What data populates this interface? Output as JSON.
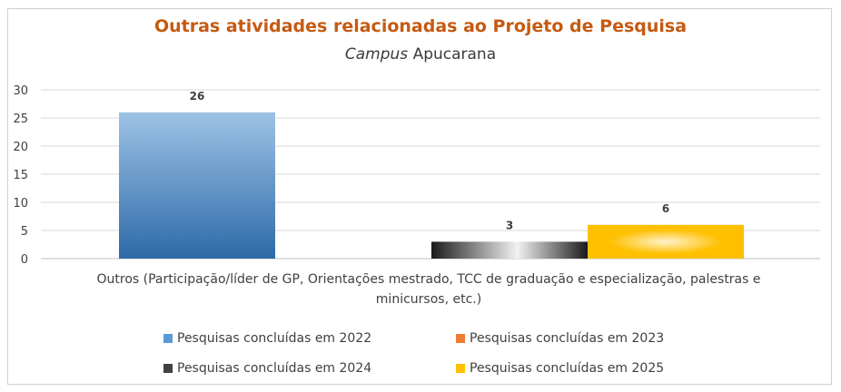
{
  "chart_data": {
    "type": "bar",
    "title": "Outras atividades relacionadas ao Projeto de Pesquisa",
    "subtitle_italic": "Campus",
    "subtitle_rest": "Apucarana",
    "categories": [
      "Outros (Participação/líder de GP, Orientações mestrado, TCC de graduação e especialização, palestras e minicursos, etc.)"
    ],
    "category_label_lines": [
      "Outros (Participação/líder de GP, Orientações mestrado, TCC de graduação e especialização, palestras e",
      "minicursos, etc.)"
    ],
    "series": [
      {
        "name": "Pesquisas concluídas em 2022",
        "values": [
          26
        ],
        "color": "#5b9bd5"
      },
      {
        "name": "Pesquisas concluídas em 2023",
        "values": [
          0
        ],
        "color": "#ed7d31"
      },
      {
        "name": "Pesquisas concluídas em 2024",
        "values": [
          3
        ],
        "color": "#404040"
      },
      {
        "name": "Pesquisas concluídas em 2025",
        "values": [
          6
        ],
        "color": "#ffc000"
      }
    ],
    "data_labels": [
      "26",
      "",
      "3",
      "6"
    ],
    "ylim": [
      0,
      30
    ],
    "yticks": [
      0,
      5,
      10,
      15,
      20,
      25,
      30
    ],
    "grid": true,
    "legend_position": "bottom"
  }
}
